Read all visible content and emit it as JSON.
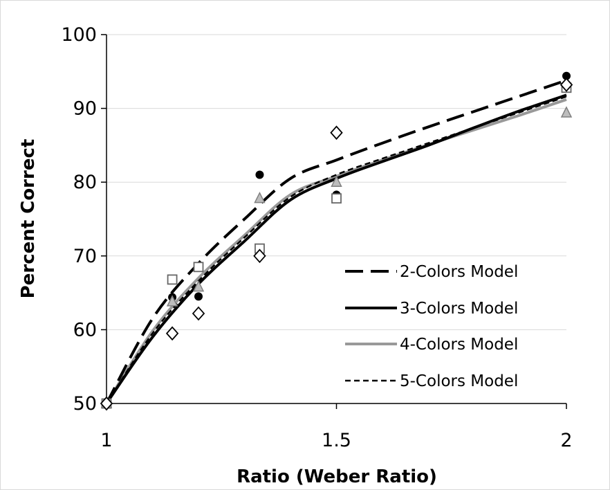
{
  "chart_data": {
    "type": "line",
    "xlabel": "Ratio (Weber Ratio)",
    "ylabel": "Percent Correct",
    "xlim": [
      1,
      2
    ],
    "ylim": [
      50,
      100
    ],
    "xticks": [
      1,
      1.5,
      2
    ],
    "yticks": [
      50,
      60,
      70,
      80,
      90,
      100
    ],
    "grid": "horizontal",
    "legend_position": "bottom-right",
    "series": [
      {
        "name": "2-Colors Model",
        "style": "long-dash",
        "color": "#000000",
        "x": [
          1,
          1.1,
          1.2,
          1.3,
          1.4,
          1.5,
          1.6,
          1.7,
          1.8,
          1.9,
          2
        ],
        "y": [
          50,
          61.5,
          69,
          75,
          80.5,
          83,
          85.3,
          87.5,
          89.6,
          91.7,
          93.8
        ]
      },
      {
        "name": "3-Colors Model",
        "style": "solid",
        "color": "#000000",
        "x": [
          1,
          1.1,
          1.2,
          1.3,
          1.4,
          1.5,
          1.6,
          1.7,
          1.8,
          1.9,
          2
        ],
        "y": [
          50,
          59,
          66.2,
          72,
          77.6,
          80.5,
          82.8,
          85,
          87.4,
          89.7,
          91.8
        ]
      },
      {
        "name": "4-Colors Model",
        "style": "solid",
        "color": "#999999",
        "x": [
          1,
          1.1,
          1.2,
          1.3,
          1.4,
          1.5,
          1.6,
          1.7,
          1.8,
          1.9,
          2
        ],
        "y": [
          50,
          59.8,
          67,
          72.8,
          78.3,
          80.8,
          83,
          85.1,
          87.1,
          89.1,
          91.2
        ]
      },
      {
        "name": "5-Colors Model",
        "style": "short-dash",
        "color": "#000000",
        "x": [
          1,
          1.1,
          1.2,
          1.3,
          1.4,
          1.5,
          1.6,
          1.7,
          1.8,
          1.9,
          2
        ],
        "y": [
          50,
          59.5,
          66.6,
          72.5,
          78,
          81,
          83.2,
          85.3,
          87.4,
          89.5,
          91.6
        ]
      }
    ],
    "observations": [
      {
        "marker": "circle-filled",
        "color": "#000000",
        "points": [
          [
            1,
            50
          ],
          [
            1.143,
            64.4
          ],
          [
            1.2,
            64.5
          ],
          [
            1.333,
            81
          ],
          [
            1.5,
            78.3
          ],
          [
            2,
            94.4
          ]
        ]
      },
      {
        "marker": "triangle",
        "color": "#808080",
        "points": [
          [
            1,
            50
          ],
          [
            1.143,
            63.8
          ],
          [
            1.2,
            65.8
          ],
          [
            1.333,
            77.8
          ],
          [
            1.5,
            80
          ],
          [
            2,
            89.4
          ]
        ]
      },
      {
        "marker": "square-open",
        "color": "#666666",
        "points": [
          [
            1,
            50
          ],
          [
            1.143,
            66.8
          ],
          [
            1.2,
            68.5
          ],
          [
            1.333,
            71
          ],
          [
            1.5,
            77.8
          ],
          [
            2,
            92.8
          ]
        ]
      },
      {
        "marker": "diamond-open",
        "color": "#000000",
        "points": [
          [
            1,
            50
          ],
          [
            1.143,
            59.5
          ],
          [
            1.2,
            62.2
          ],
          [
            1.333,
            70
          ],
          [
            1.5,
            86.7
          ],
          [
            2,
            93.2
          ]
        ]
      }
    ]
  }
}
